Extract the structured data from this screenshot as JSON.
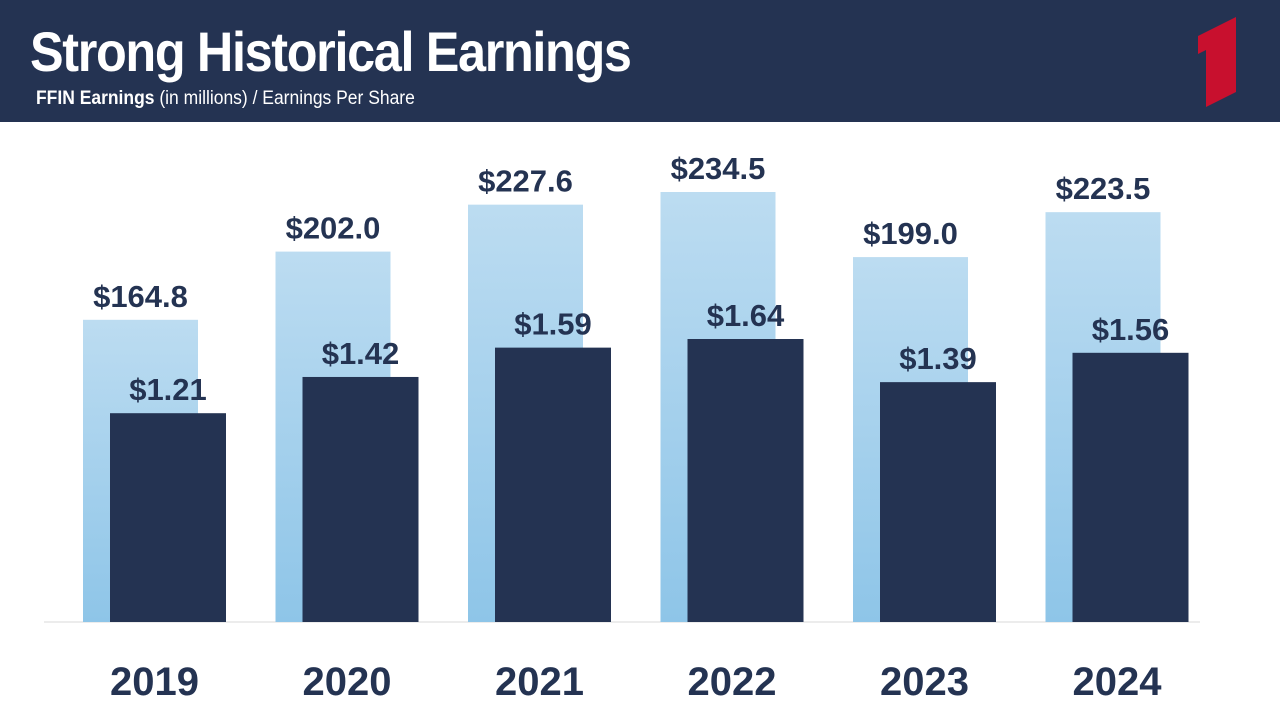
{
  "header": {
    "title": "Strong Historical Earnings",
    "subtitle_bold": "FFIN Earnings",
    "subtitle_rest": " (in millions) / Earnings Per Share"
  },
  "colors": {
    "header_bg": "#243352",
    "earnings_top": "#bcdcf1",
    "earnings_bottom": "#8ec5e8",
    "eps": "#243352",
    "label": "#243352",
    "logo_red": "#c8102e"
  },
  "logo_icon": "number-one-logo",
  "chart_data": {
    "type": "bar",
    "categories": [
      "2019",
      "2020",
      "2021",
      "2022",
      "2023",
      "2024"
    ],
    "series": [
      {
        "values": [
          164.8,
          202.0,
          227.6,
          234.5,
          199.0,
          223.5
        ],
        "labels": [
          "$164.8",
          "$202.0",
          "$227.6",
          "$234.5",
          "$199.0",
          "$223.5"
        ]
      },
      {
        "values": [
          1.21,
          1.42,
          1.59,
          1.64,
          1.39,
          1.56
        ],
        "labels": [
          "$1.21",
          "$1.42",
          "$1.59",
          "$1.64",
          "$1.39",
          "$1.56"
        ]
      }
    ],
    "grid": false,
    "legend": "none"
  }
}
